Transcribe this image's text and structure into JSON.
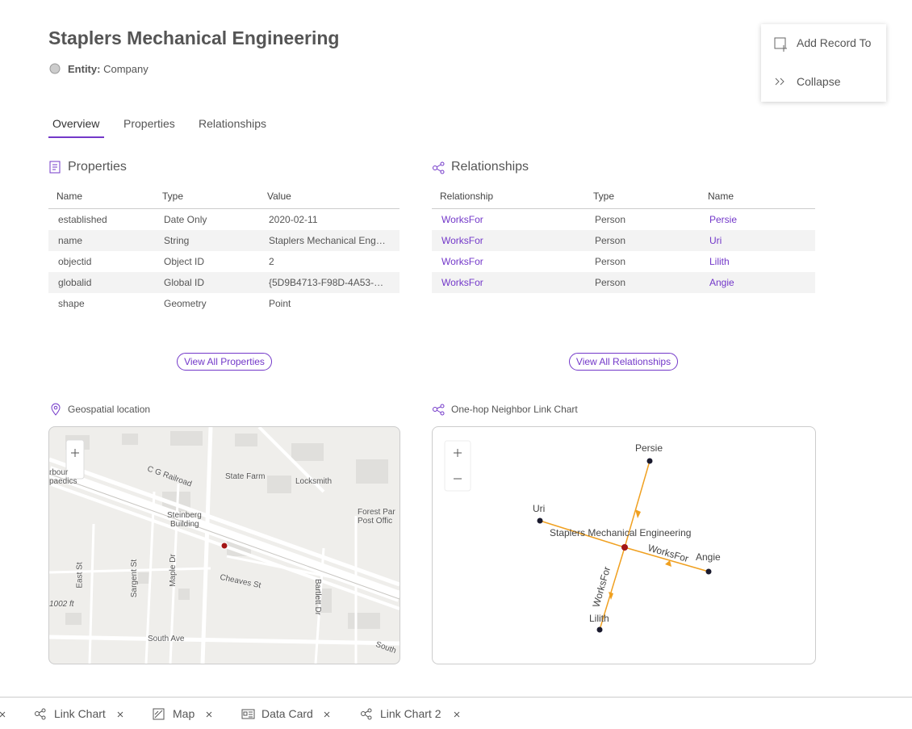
{
  "header": {
    "title": "Staplers Mechanical Engineering",
    "entity_label": "Entity:",
    "entity_value": "Company"
  },
  "menu": {
    "items": [
      "Add Record To",
      "Collapse"
    ]
  },
  "tabs": [
    "Overview",
    "Properties",
    "Relationships"
  ],
  "properties": {
    "title": "Properties",
    "columns": [
      "Name",
      "Type",
      "Value"
    ],
    "rows": [
      [
        "established",
        "Date Only",
        "2020-02-11"
      ],
      [
        "name",
        "String",
        "Staplers Mechanical Eng…"
      ],
      [
        "objectid",
        "Object ID",
        "2"
      ],
      [
        "globalid",
        "Global ID",
        "{5D9B4713-F98D-4A53-…"
      ],
      [
        "shape",
        "Geometry",
        "Point"
      ]
    ],
    "button": "View All Properties"
  },
  "relationships": {
    "title": "Relationships",
    "columns": [
      "Relationship",
      "Type",
      "Name"
    ],
    "rows": [
      [
        "WorksFor",
        "Person",
        "Persie"
      ],
      [
        "WorksFor",
        "Person",
        "Uri"
      ],
      [
        "WorksFor",
        "Person",
        "Lilith"
      ],
      [
        "WorksFor",
        "Person",
        "Angie"
      ]
    ],
    "button": "View All Relationships"
  },
  "map": {
    "title": "Geospatial location",
    "labels": [
      "rbour",
      "paedics",
      "C G Railroad",
      "State Farm",
      "Locksmith",
      "Steinberg",
      "Building",
      "Forest Par",
      "Post Offic",
      "East St",
      "Sargent St",
      "Maple Dr",
      "Cheaves St",
      "Bartlett Dr",
      "South Ave",
      "South"
    ],
    "scale": "1002 ft"
  },
  "link_chart": {
    "title": "One-hop Neighbor Link Chart",
    "center": "Staplers Mechanical Engineering",
    "nodes": [
      "Persie",
      "Uri",
      "Angie",
      "Lilith"
    ],
    "edge_labels": [
      "WorksFor",
      "WorksFor"
    ]
  },
  "bottom_tabs": [
    "Link Chart",
    "Map",
    "Data Card",
    "Link Chart 2"
  ]
}
